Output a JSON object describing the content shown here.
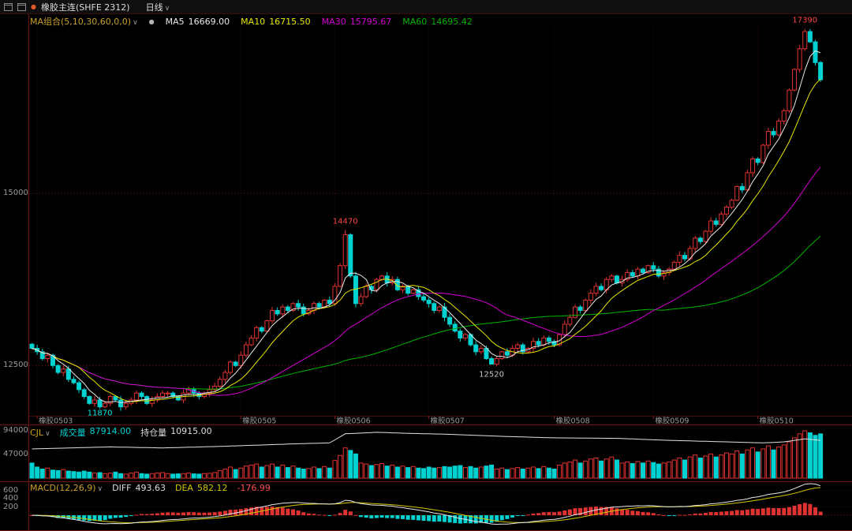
{
  "title_bar": {
    "instrument": "橡胶主连(SHFE 2312)",
    "period": "日线",
    "caret": "∨"
  },
  "icons": {
    "bullet": "●"
  },
  "ma_header": {
    "label": "MA组合(5,10,30,60,0,0)",
    "caret": "∨",
    "items": [
      {
        "name": "MA5",
        "value": "16669.00"
      },
      {
        "name": "MA10",
        "value": "16715.50"
      },
      {
        "name": "MA30",
        "value": "15795.67"
      },
      {
        "name": "MA60",
        "value": "14695.42"
      }
    ]
  },
  "volume_header": {
    "label": "CJL",
    "caret": "∨",
    "fields": [
      {
        "name": "成交量",
        "value": "87914.00"
      },
      {
        "name": "持仓量",
        "value": "10915.00"
      }
    ]
  },
  "macd_header": {
    "label": "MACD(12,26,9)",
    "caret": "∨",
    "diff_name": "DIFF",
    "diff_value": "493.63",
    "dea_name": "DEA",
    "dea_value": "582.12",
    "bar_value": "-176.99"
  },
  "axes": {
    "main": [
      {
        "label": "15000",
        "value": 15000
      },
      {
        "label": "12500",
        "value": 12500
      }
    ],
    "volume": [
      {
        "label": "94000",
        "value": 94000
      },
      {
        "label": "47000",
        "value": 47000
      }
    ],
    "macd": [
      {
        "label": "600",
        "value": 600
      },
      {
        "label": "400",
        "value": 400
      },
      {
        "label": "200",
        "value": 200
      }
    ],
    "x_labels": [
      {
        "text": "橡胶0503",
        "index": 1
      },
      {
        "text": "橡胶0505",
        "index": 40
      },
      {
        "text": "橡胶0506",
        "index": 58
      },
      {
        "text": "橡胶0507",
        "index": 76
      },
      {
        "text": "橡胶0508",
        "index": 100
      },
      {
        "text": "橡胶0509",
        "index": 119
      },
      {
        "text": "橡胶0510",
        "index": 139
      }
    ]
  },
  "annotations": [
    {
      "text": "17390",
      "index": 148,
      "price": 17390,
      "color": "#ff4545",
      "dy": -8
    },
    {
      "text": "14470",
      "index": 60,
      "price": 14470,
      "color": "#ff4545",
      "dy": -8
    },
    {
      "text": "12520",
      "index": 88,
      "price": 12520,
      "color": "#c8c8c8",
      "dy": 16
    },
    {
      "text": "11870",
      "index": 13,
      "price": 11870,
      "color": "#00e6e6",
      "dy": 8
    }
  ],
  "colors": {
    "up": "#e13232",
    "down": "#00d2d2",
    "ma5": "#e8e8e8",
    "ma10": "#e6e600",
    "ma30": "#d400d4",
    "ma60": "#00b400",
    "open_interest": "#e0e0e0",
    "diff": "#e8e8e8",
    "dea": "#d2c800",
    "grid": "#7a1616",
    "grid_faint": "#3f0d0d",
    "separator": "#6b1414",
    "axis_text": "#9a9a9a",
    "gold": "#c8a028",
    "annotation_red": "#ff4545",
    "annotation_cyan": "#00e6e6",
    "annotation_gray": "#c8c8c8"
  },
  "chart_data": {
    "type": "candlestick",
    "title": "橡胶主连(SHFE 2312) 日线",
    "panes": [
      "price with MA5/MA10/MA30/MA60",
      "volume bars with open-interest line",
      "MACD(12,26,9)"
    ],
    "ylim": [
      11770,
      17430
    ],
    "volume_ylim": [
      0,
      94000
    ],
    "macd_ylim": [
      -400,
      650
    ],
    "ma_periods": [
      5,
      10,
      30,
      60
    ],
    "macd_params": [
      12,
      26,
      9
    ],
    "key_points": {
      "high": 17390,
      "low": 11870,
      "spike_high": 14470,
      "mid_low": 12520
    },
    "closes": [
      12750,
      12700,
      12600,
      12650,
      12500,
      12400,
      12450,
      12300,
      12250,
      12150,
      12050,
      11950,
      12000,
      11900,
      11950,
      12050,
      12000,
      11900,
      11950,
      12000,
      12100,
      12050,
      11950,
      12000,
      12050,
      12100,
      12100,
      12050,
      12000,
      12100,
      12150,
      12100,
      12050,
      12100,
      12150,
      12200,
      12300,
      12400,
      12550,
      12500,
      12650,
      12800,
      12900,
      13050,
      13000,
      13150,
      13300,
      13250,
      13350,
      13300,
      13400,
      13350,
      13250,
      13300,
      13400,
      13350,
      13450,
      13400,
      13650,
      13950,
      14400,
      13800,
      13400,
      13500,
      13650,
      13600,
      13750,
      13800,
      13700,
      13750,
      13600,
      13650,
      13550,
      13600,
      13500,
      13450,
      13400,
      13300,
      13350,
      13200,
      13100,
      13000,
      12900,
      12950,
      12800,
      12700,
      12750,
      12600,
      12520,
      12600,
      12700,
      12650,
      12750,
      12800,
      12700,
      12750,
      12850,
      12800,
      12900,
      12850,
      12800,
      12950,
      13100,
      13200,
      13350,
      13300,
      13450,
      13550,
      13650,
      13600,
      13750,
      13800,
      13700,
      13750,
      13850,
      13800,
      13900,
      13850,
      13950,
      13900,
      13800,
      13850,
      13900,
      14000,
      14100,
      14050,
      14200,
      14350,
      14300,
      14450,
      14600,
      14550,
      14700,
      14800,
      14900,
      15100,
      15050,
      15300,
      15500,
      15450,
      15700,
      15900,
      15850,
      16050,
      16200,
      16500,
      16800,
      17100,
      17350,
      17200,
      16900,
      16650
    ],
    "volumes": [
      30000,
      22000,
      18000,
      20000,
      16000,
      15000,
      17000,
      14000,
      13000,
      12000,
      14000,
      12000,
      10000,
      11000,
      9000,
      10000,
      12000,
      9000,
      8000,
      10000,
      12000,
      9000,
      8000,
      9000,
      10000,
      11000,
      9000,
      8000,
      8500,
      9000,
      10000,
      8500,
      8000,
      9000,
      9500,
      11000,
      15000,
      18000,
      22000,
      17000,
      20000,
      24000,
      26000,
      28000,
      22000,
      25000,
      28000,
      22000,
      26000,
      21000,
      24000,
      20000,
      18000,
      19000,
      22000,
      19000,
      23000,
      20000,
      35000,
      45000,
      60000,
      55000,
      48000,
      30000,
      28000,
      25000,
      27000,
      29000,
      24000,
      26000,
      22000,
      24000,
      21000,
      23000,
      20000,
      19000,
      22000,
      20000,
      21000,
      23000,
      22000,
      24000,
      25000,
      21000,
      23000,
      20000,
      22000,
      24000,
      26000,
      18000,
      20000,
      17000,
      19000,
      21000,
      18000,
      20000,
      22000,
      19000,
      23000,
      20000,
      18000,
      26000,
      30000,
      32000,
      36000,
      30000,
      34000,
      38000,
      40000,
      34000,
      38000,
      42000,
      36000,
      30000,
      32000,
      29000,
      33000,
      30000,
      34000,
      31000,
      28000,
      30000,
      32000,
      36000,
      40000,
      36000,
      42000,
      46000,
      40000,
      44000,
      48000,
      42000,
      46000,
      50000,
      48000,
      54000,
      48000,
      56000,
      60000,
      52000,
      58000,
      64000,
      56000,
      62000,
      66000,
      72000,
      80000,
      88000,
      94000,
      90000,
      85000,
      87914
    ],
    "wick_overrides": {
      "13": {
        "low": 11870
      },
      "60": {
        "high": 14470
      },
      "88": {
        "low": 12520
      },
      "148": {
        "high": 17390
      }
    },
    "open_interest_points": [
      [
        0,
        58000
      ],
      [
        15,
        62000
      ],
      [
        25,
        60000
      ],
      [
        36,
        63000
      ],
      [
        50,
        68000
      ],
      [
        57,
        70000
      ],
      [
        60,
        88000
      ],
      [
        66,
        91000
      ],
      [
        72,
        89000
      ],
      [
        80,
        87000
      ],
      [
        90,
        83000
      ],
      [
        100,
        80000
      ],
      [
        112,
        79000
      ],
      [
        122,
        75000
      ],
      [
        133,
        72000
      ],
      [
        140,
        70000
      ],
      [
        144,
        72000
      ],
      [
        148,
        78000
      ],
      [
        151,
        75000
      ]
    ]
  }
}
